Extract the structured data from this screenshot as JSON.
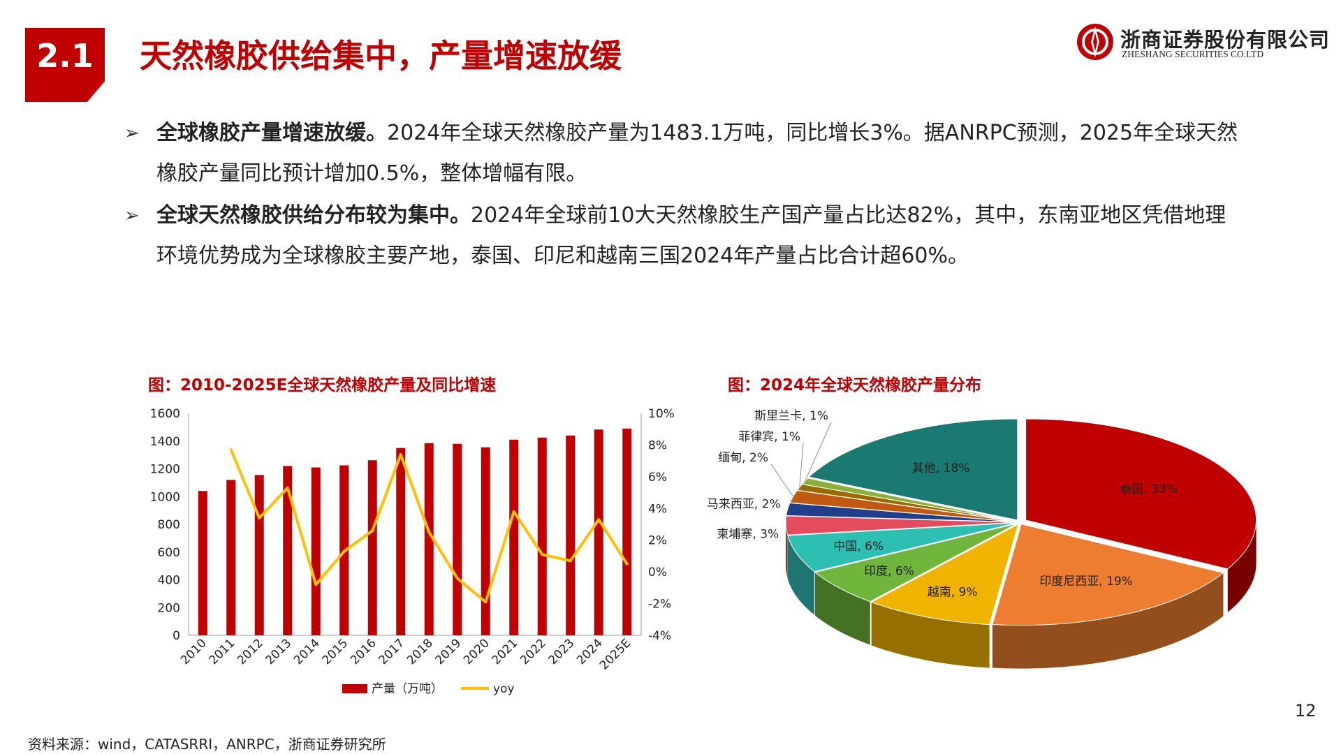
{
  "header": {
    "section_number": "2.1",
    "title": "天然橡胶供给集中，产量增速放缓",
    "logo_cn": "浙商证券股份有限公司",
    "logo_en": "ZHESHANG SECURITIES CO.LTD",
    "logo_icon": "zheshang-logo-icon"
  },
  "bullets": [
    {
      "bold": "全球橡胶产量增速放缓。",
      "text": "2024年全球天然橡胶产量为1483.1万吨，同比增长3%。据ANRPC预测，2025年全球天然橡胶产量同比预计增加0.5%，整体增幅有限。"
    },
    {
      "bold": "全球天然橡胶供给分布较为集中。",
      "text": "2024年全球前10大天然橡胶生产国产量占比达82%，其中，东南亚地区凭借地理环境优势成为全球橡胶主要产地，泰国、印尼和越南三国2024年产量占比合计超60%。"
    }
  ],
  "bar_chart_title": "图：2010-2025E全球天然橡胶产量及同比增速",
  "pie_chart_title": "图：2024年全球天然橡胶产量分布",
  "source": "资料来源：wind，CATASRRI，ANRPC，浙商证券研究所",
  "page_number": "12",
  "colors": {
    "brand_red": "#c00000",
    "bar": "#c00000",
    "yoy_line": "#ffc000"
  },
  "chart_data": [
    {
      "type": "bar",
      "title": "图：2010-2025E全球天然橡胶产量及同比增速",
      "categories": [
        "2010",
        "2011",
        "2012",
        "2013",
        "2014",
        "2015",
        "2016",
        "2017",
        "2018",
        "2019",
        "2020",
        "2021",
        "2022",
        "2023",
        "2024",
        "2025E"
      ],
      "series": [
        {
          "name": "产量（万吨）",
          "type": "bar",
          "axis": "left",
          "values": [
            1040,
            1120,
            1155,
            1220,
            1210,
            1225,
            1262,
            1350,
            1385,
            1380,
            1355,
            1410,
            1425,
            1440,
            1483.1,
            1490
          ]
        },
        {
          "name": "yoy",
          "type": "line",
          "axis": "right",
          "values": [
            null,
            7.7,
            3.4,
            5.3,
            -0.8,
            1.3,
            2.6,
            7.4,
            2.5,
            -0.4,
            -1.9,
            3.8,
            1.1,
            0.7,
            3.3,
            0.5
          ]
        }
      ],
      "y_left": {
        "min": 0,
        "max": 1600,
        "ticks": [
          "0",
          "200",
          "400",
          "600",
          "800",
          "1000",
          "1200",
          "1400",
          "1600"
        ]
      },
      "y_right": {
        "min": -4,
        "max": 10,
        "ticks": [
          "-4%",
          "-2%",
          "0%",
          "2%",
          "4%",
          "6%",
          "8%",
          "10%"
        ]
      },
      "legend": [
        "产量（万吨）",
        "yoy"
      ],
      "legend_position": "bottom"
    },
    {
      "type": "pie",
      "title": "图：2024年全球天然橡胶产量分布",
      "style": "3d-exploded",
      "slices": [
        {
          "label": "泰国, 33%",
          "value": 33,
          "color": "#c00000"
        },
        {
          "label": "印度尼西亚, 19%",
          "value": 19,
          "color": "#ed7d31"
        },
        {
          "label": "越南, 9%",
          "value": 9,
          "color": "#f0b400"
        },
        {
          "label": "印度, 6%",
          "value": 6,
          "color": "#70b63c"
        },
        {
          "label": "中国, 6%",
          "value": 6,
          "color": "#2ebfb3"
        },
        {
          "label": "柬埔寨, 3%",
          "value": 3,
          "color": "#e24c5c"
        },
        {
          "label": "马来西亚, 2%",
          "value": 2,
          "color": "#1f3f8c"
        },
        {
          "label": "缅甸, 2%",
          "value": 2,
          "color": "#c05a10"
        },
        {
          "label": "菲律宾, 1%",
          "value": 1,
          "color": "#9a6a00"
        },
        {
          "label": "斯里兰卡, 1%",
          "value": 1,
          "color": "#8ab036"
        },
        {
          "label": "其他, 18%",
          "value": 18,
          "color": "#1a7a72"
        }
      ]
    }
  ]
}
